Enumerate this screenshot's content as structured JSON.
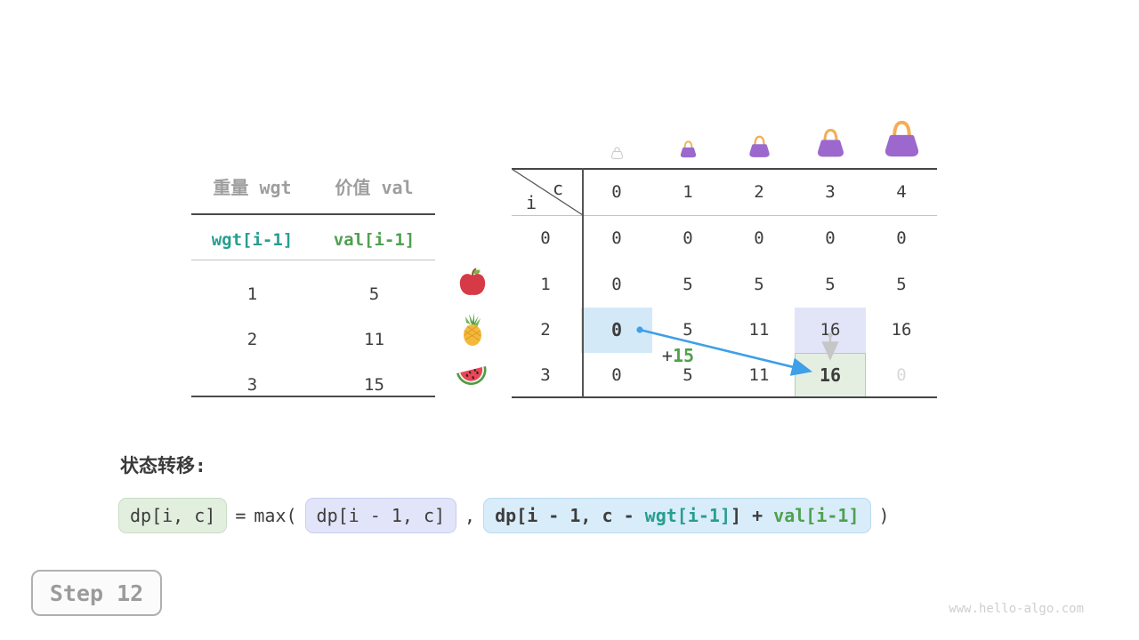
{
  "items_table": {
    "col_headers": [
      "重量 wgt",
      "价值 val"
    ],
    "index_headers": [
      "wgt[i-1]",
      "val[i-1]"
    ],
    "rows": [
      [
        "1",
        "5"
      ],
      [
        "2",
        "11"
      ],
      [
        "3",
        "15"
      ]
    ],
    "fruit_icons": [
      "apple",
      "pineapple",
      "watermelon"
    ]
  },
  "dp_table": {
    "corner_col_label": "c",
    "corner_row_label": "i",
    "col_headers": [
      "0",
      "1",
      "2",
      "3",
      "4"
    ],
    "row_headers": [
      "0",
      "1",
      "2",
      "3"
    ],
    "cells": [
      [
        "0",
        "0",
        "0",
        "0",
        "0"
      ],
      [
        "0",
        "5",
        "5",
        "5",
        "5"
      ],
      [
        "0",
        "5",
        "11",
        "16",
        "16"
      ],
      [
        "0",
        "5",
        "11",
        "16",
        "0"
      ]
    ],
    "bold_cells": [
      [
        2,
        0
      ],
      [
        3,
        3
      ]
    ],
    "muted_cells": [
      [
        3,
        4
      ]
    ],
    "highlights": [
      {
        "row": 2,
        "col": 0,
        "style": "blue"
      },
      {
        "row": 2,
        "col": 3,
        "style": "lavender"
      },
      {
        "row": 3,
        "col": 3,
        "style": "green"
      }
    ],
    "transition_annotation": {
      "plus": "+",
      "value": "15"
    },
    "bag_icons": [
      "bag-capacity-0",
      "bag-capacity-1",
      "bag-capacity-2",
      "bag-capacity-3",
      "bag-capacity-4"
    ]
  },
  "formula": {
    "section_label": "状态转移:",
    "result": "dp[i, c]",
    "equals": "=",
    "max_open": "max(",
    "option_keep": "dp[i - 1, c]",
    "comma": ",",
    "option_take_parts": [
      {
        "text": "dp[i - 1, c - ",
        "role": "plain"
      },
      {
        "text": "wgt[i-1]",
        "role": "weight"
      },
      {
        "text": "] + ",
        "role": "plain"
      },
      {
        "text": "val[i-1]",
        "role": "value"
      }
    ],
    "close_paren": ")"
  },
  "step_badge": {
    "label": "Step 12"
  },
  "watermark": {
    "text": "www.hello-algo.com"
  },
  "colors": {
    "teal": "#279e90",
    "green": "#4fa04f",
    "arrow_blue": "#3f9fe8",
    "arrow_gray": "#c6c6c6",
    "highlight_blue": "#d3e9f8",
    "highlight_lavender": "#e2e4f8",
    "highlight_green": "#e5efe1",
    "bag_purple": "#9c68ce",
    "bag_handle": "#f3ae55",
    "muted_zero": "#d8d8d8",
    "text_dark": "#3d3d3d",
    "text_gray": "#9e9e9e"
  }
}
